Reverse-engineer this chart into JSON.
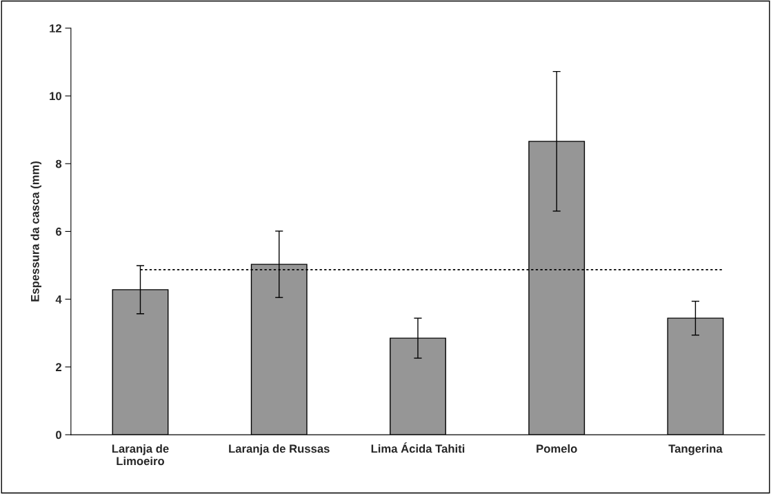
{
  "chart_data": {
    "type": "bar",
    "ylabel": "Espessura da casca (mm)",
    "categories": [
      "Laranja de\nLimoeiro",
      "Laranja de Russas",
      "Lima Ácida Tahiti",
      "Pomelo",
      "Tangerina"
    ],
    "values": [
      4.28,
      5.03,
      2.85,
      8.66,
      3.44
    ],
    "errors": [
      0.71,
      0.98,
      0.59,
      2.06,
      0.5
    ],
    "color": "#969696",
    "ylim": [
      0,
      12
    ],
    "yticks": [
      0,
      2,
      4,
      6,
      8,
      10,
      12
    ],
    "grid": false,
    "ref_lines": [
      {
        "axis": "y",
        "value": 4.87,
        "line_style": "dotted",
        "color": "#000000"
      }
    ]
  }
}
